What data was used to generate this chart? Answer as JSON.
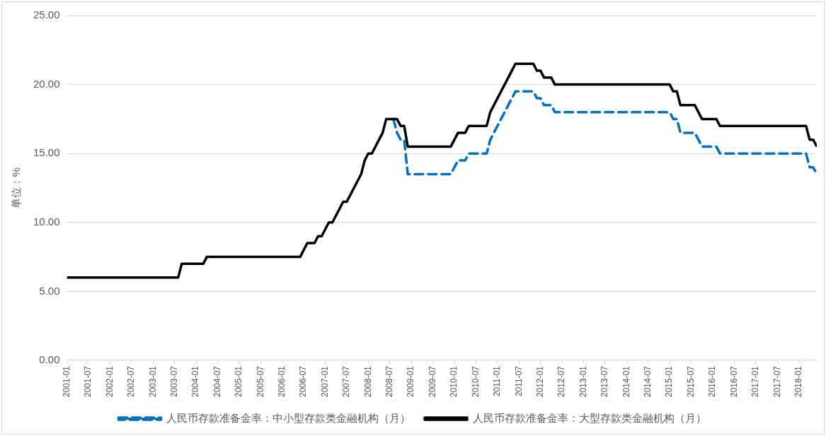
{
  "chart_data": {
    "type": "line",
    "ylabel": "单位：%",
    "xlim": [
      "2001-01",
      "2018-06"
    ],
    "xticks": [
      "2001-01",
      "2001-07",
      "2002-01",
      "2002-07",
      "2003-01",
      "2003-07",
      "2004-01",
      "2004-07",
      "2005-01",
      "2005-07",
      "2006-01",
      "2006-07",
      "2007-01",
      "2007-07",
      "2008-01",
      "2008-07",
      "2009-01",
      "2009-07",
      "2010-01",
      "2010-07",
      "2011-01",
      "2011-07",
      "2012-01",
      "2012-07",
      "2013-01",
      "2013-07",
      "2014-01",
      "2014-07",
      "2015-01",
      "2015-07",
      "2016-01",
      "2016-07",
      "2017-01",
      "2017-07",
      "2018-01"
    ],
    "ylim": [
      0,
      25
    ],
    "yticks": [
      {
        "value": 0,
        "label": "0.00"
      },
      {
        "value": 5,
        "label": "5.00"
      },
      {
        "value": 10,
        "label": "10.00"
      },
      {
        "value": 15,
        "label": "15.00"
      },
      {
        "value": 20,
        "label": "20.00"
      },
      {
        "value": 25,
        "label": "25.00"
      }
    ],
    "grid": "y",
    "legend": "bottom",
    "marker": "none",
    "series": [
      {
        "name": "人民币存款准备金率：中小型存款类金融机构（月）",
        "color": "#0070c0",
        "line_style": "dashed",
        "x": [
          "2008-08",
          "2008-09",
          "2008-10",
          "2008-11",
          "2008-12",
          "2009-12",
          "2010-01",
          "2010-02",
          "2010-04",
          "2010-05",
          "2010-10",
          "2010-11",
          "2010-12",
          "2011-01",
          "2011-02",
          "2011-03",
          "2011-04",
          "2011-05",
          "2011-06",
          "2011-11",
          "2011-12",
          "2012-01",
          "2012-02",
          "2012-04",
          "2012-05",
          "2015-01",
          "2015-02",
          "2015-03",
          "2015-04",
          "2015-08",
          "2015-09",
          "2015-10",
          "2016-02",
          "2016-03",
          "2018-03",
          "2018-04",
          "2018-05",
          "2018-06"
        ],
        "values": [
          17.5,
          16.5,
          16,
          16,
          13.5,
          13.5,
          14,
          14.5,
          14.5,
          15,
          15,
          16,
          16.5,
          17,
          17.5,
          18,
          18.5,
          19,
          19.5,
          19.5,
          19,
          19,
          18.5,
          18.5,
          18,
          18,
          17.5,
          17.5,
          16.5,
          16.5,
          16,
          15.5,
          15.5,
          15,
          15,
          14,
          14,
          13.5
        ]
      },
      {
        "name": "人民币存款准备金率：大型存款类金融机构（月）",
        "color": "#000000",
        "line_style": "solid",
        "x": [
          "2001-01",
          "2003-08",
          "2003-09",
          "2004-03",
          "2004-04",
          "2006-06",
          "2006-07",
          "2006-08",
          "2006-10",
          "2006-11",
          "2006-12",
          "2007-01",
          "2007-02",
          "2007-03",
          "2007-04",
          "2007-05",
          "2007-06",
          "2007-07",
          "2007-08",
          "2007-09",
          "2007-10",
          "2007-11",
          "2007-12",
          "2008-01",
          "2008-02",
          "2008-03",
          "2008-04",
          "2008-05",
          "2008-06",
          "2008-09",
          "2008-10",
          "2008-11",
          "2008-12",
          "2009-12",
          "2010-01",
          "2010-02",
          "2010-04",
          "2010-05",
          "2010-10",
          "2010-11",
          "2010-12",
          "2011-01",
          "2011-02",
          "2011-03",
          "2011-04",
          "2011-05",
          "2011-06",
          "2011-11",
          "2011-12",
          "2012-01",
          "2012-02",
          "2012-04",
          "2012-05",
          "2015-01",
          "2015-02",
          "2015-03",
          "2015-04",
          "2015-08",
          "2015-09",
          "2015-10",
          "2016-02",
          "2016-03",
          "2018-03",
          "2018-04",
          "2018-05",
          "2018-06"
        ],
        "values": [
          6,
          6,
          7,
          7,
          7.5,
          7.5,
          8,
          8.5,
          8.5,
          9,
          9,
          9.5,
          10,
          10,
          10.5,
          11,
          11.5,
          11.5,
          12,
          12.5,
          13,
          13.5,
          14.5,
          15,
          15,
          15.5,
          16,
          16.5,
          17.5,
          17.5,
          17,
          17,
          15.5,
          15.5,
          16,
          16.5,
          16.5,
          17,
          17,
          18,
          18.5,
          19,
          19.5,
          20,
          20.5,
          21,
          21.5,
          21.5,
          21,
          21,
          20.5,
          20.5,
          20,
          20,
          19.5,
          19.5,
          18.5,
          18.5,
          18,
          17.5,
          17.5,
          17,
          17,
          16,
          16,
          15.5
        ]
      }
    ]
  }
}
